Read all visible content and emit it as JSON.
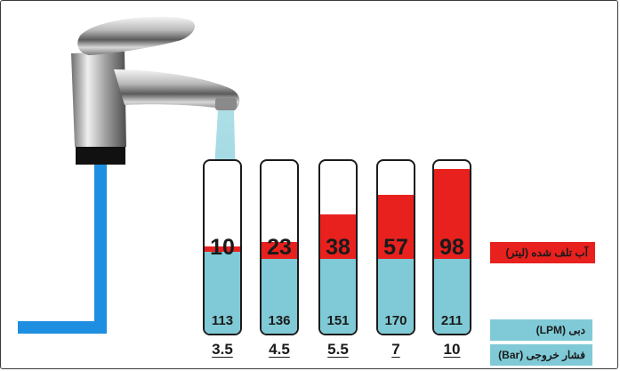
{
  "columns": [
    {
      "wasted": "10",
      "wasted_fraction": 0.03,
      "flow": "113",
      "pressure": "3.5"
    },
    {
      "wasted": "23",
      "wasted_fraction": 0.1,
      "flow": "136",
      "pressure": "4.5"
    },
    {
      "wasted": "38",
      "wasted_fraction": 0.26,
      "flow": "151",
      "pressure": "5.5"
    },
    {
      "wasted": "57",
      "wasted_fraction": 0.37,
      "flow": "170",
      "pressure": "7"
    },
    {
      "wasted": "98",
      "wasted_fraction": 0.52,
      "flow": "211",
      "pressure": "10"
    }
  ],
  "legend": {
    "wasted_water": "آب تلف شده (لیتر)",
    "flow_rate": "دبی (LPM)",
    "outlet_pressure": "فشار خروجی (Bar)"
  },
  "colors": {
    "wasted": "#e8211e",
    "water": "#7fcad6",
    "pipe": "#1e8fe0"
  },
  "icons": [
    "faucet-icon",
    "water-pipe-icon",
    "water-stream-icon"
  ]
}
